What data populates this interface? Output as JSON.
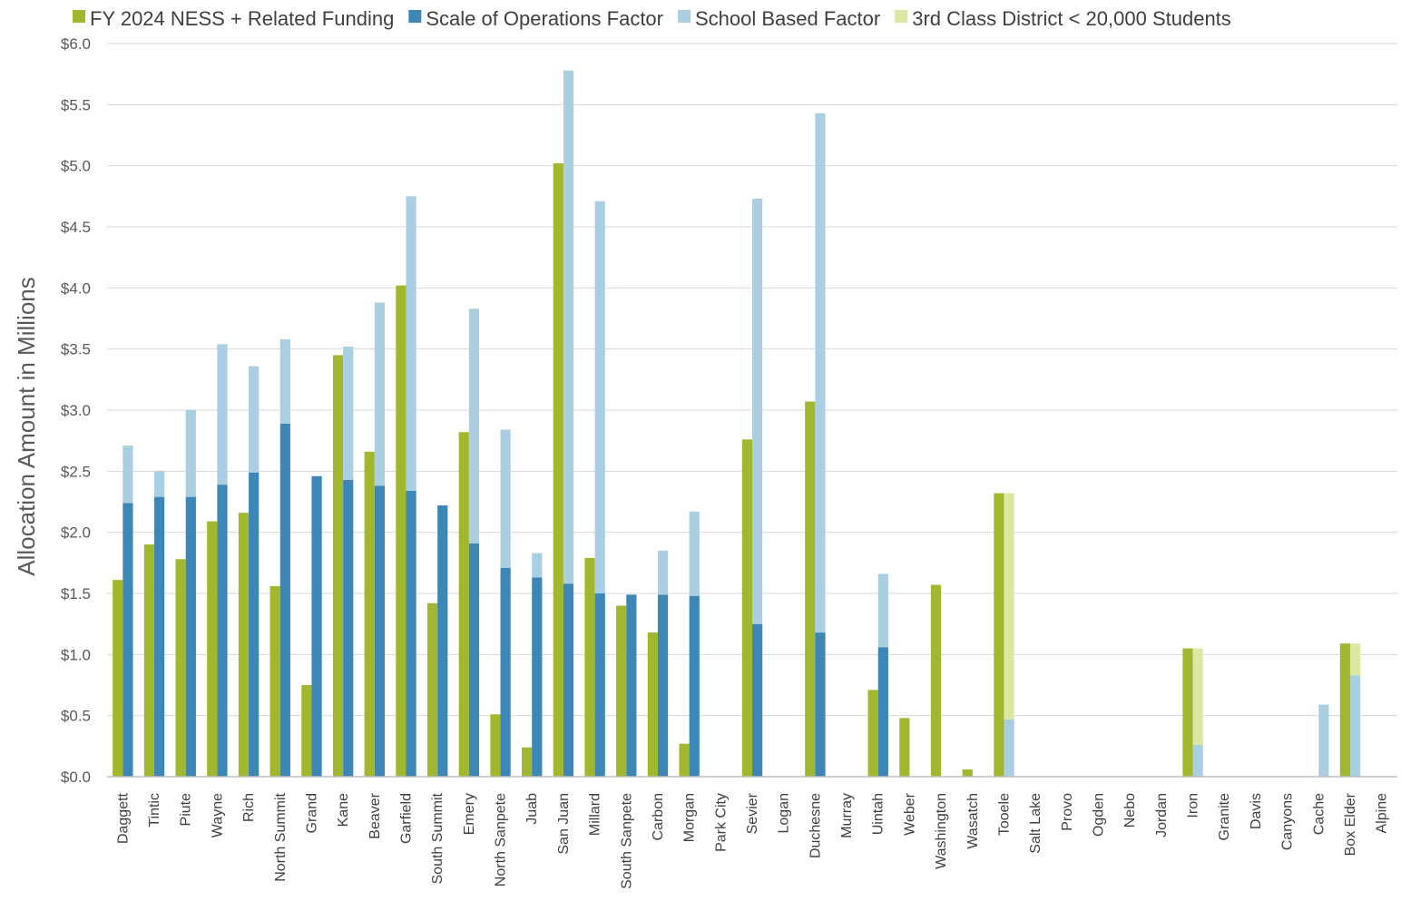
{
  "chart_data": {
    "type": "bar",
    "title": "",
    "xlabel": "",
    "ylabel": "Allocation Amount in Millions",
    "ylim": [
      0,
      6
    ],
    "y_ticks": [
      "$0.0",
      "$0.5",
      "$1.0",
      "$1.5",
      "$2.0",
      "$2.5",
      "$3.0",
      "$3.5",
      "$4.0",
      "$4.5",
      "$5.0",
      "$5.5",
      "$6.0"
    ],
    "y_tick_values": [
      0,
      0.5,
      1,
      1.5,
      2,
      2.5,
      3,
      3.5,
      4,
      4.5,
      5,
      5.5,
      6
    ],
    "grid": true,
    "legend_position": "top",
    "categories": [
      "Daggett",
      "Tintic",
      "Piute",
      "Wayne",
      "Rich",
      "North Summit",
      "Grand",
      "Kane",
      "Beaver",
      "Garfield",
      "South Summit",
      "Emery",
      "North Sanpete",
      "Juab",
      "San Juan",
      "Millard",
      "South Sanpete",
      "Carbon",
      "Morgan",
      "Park City",
      "Sevier",
      "Logan",
      "Duchesne",
      "Murray",
      "Uintah",
      "Weber",
      "Washington",
      "Wasatch",
      "Tooele",
      "Salt Lake",
      "Provo",
      "Ogden",
      "Nebo",
      "Jordan",
      "Iron",
      "Granite",
      "Davis",
      "Canyons",
      "Cache",
      "Box Elder",
      "Alpine"
    ],
    "series": [
      {
        "name": "FY 2024 NESS + Related Funding",
        "color": "#a2b72e",
        "stack": "fy2024",
        "values": [
          1.61,
          1.9,
          1.78,
          2.09,
          2.16,
          1.56,
          0.75,
          3.45,
          2.66,
          4.02,
          1.42,
          2.82,
          0.51,
          0.24,
          5.02,
          1.79,
          1.4,
          1.18,
          0.27,
          0,
          2.76,
          0,
          3.07,
          0,
          0.71,
          0.48,
          1.57,
          0.06,
          2.32,
          0,
          0,
          0,
          0,
          0,
          1.05,
          0,
          0,
          0,
          0,
          1.09,
          0
        ]
      },
      {
        "name": "Scale of Operations Factor",
        "color": "#3d86b5",
        "stack": "proposed",
        "values": [
          2.24,
          2.29,
          2.29,
          2.39,
          2.49,
          2.89,
          2.46,
          2.43,
          2.38,
          2.34,
          2.22,
          1.91,
          1.71,
          1.63,
          1.58,
          1.5,
          1.49,
          1.49,
          1.48,
          0,
          1.25,
          0,
          1.18,
          0,
          1.06,
          0,
          0,
          0,
          0,
          0,
          0,
          0,
          0,
          0,
          0,
          0,
          0,
          0,
          0,
          0,
          0
        ]
      },
      {
        "name": "School Based Factor",
        "color": "#aacfe3",
        "stack": "proposed",
        "values": [
          0.47,
          0.21,
          0.71,
          1.15,
          0.87,
          0.69,
          0,
          1.09,
          1.5,
          2.41,
          0,
          1.92,
          1.13,
          0.2,
          4.2,
          3.21,
          0,
          0.36,
          0.69,
          0,
          3.48,
          0,
          4.25,
          0,
          0.6,
          0,
          0,
          0,
          0.47,
          0,
          0,
          0,
          0,
          0,
          0.26,
          0,
          0,
          0,
          0.59,
          0.83,
          0
        ]
      },
      {
        "name": "3rd Class District < 20,000 Students",
        "color": "#dbe7a3",
        "stack": "proposed",
        "values": [
          0,
          0,
          0,
          0,
          0,
          0,
          0,
          0,
          0,
          0,
          0,
          0,
          0,
          0,
          0,
          0,
          0,
          0,
          0,
          0,
          0,
          0,
          0,
          0,
          0,
          0,
          0,
          0,
          1.85,
          0,
          0,
          0,
          0,
          0,
          0.79,
          0,
          0,
          0,
          0,
          0.26,
          0
        ]
      }
    ]
  },
  "colors": {
    "grid": "#d9d9d9",
    "axis": "#bfbfbf"
  }
}
